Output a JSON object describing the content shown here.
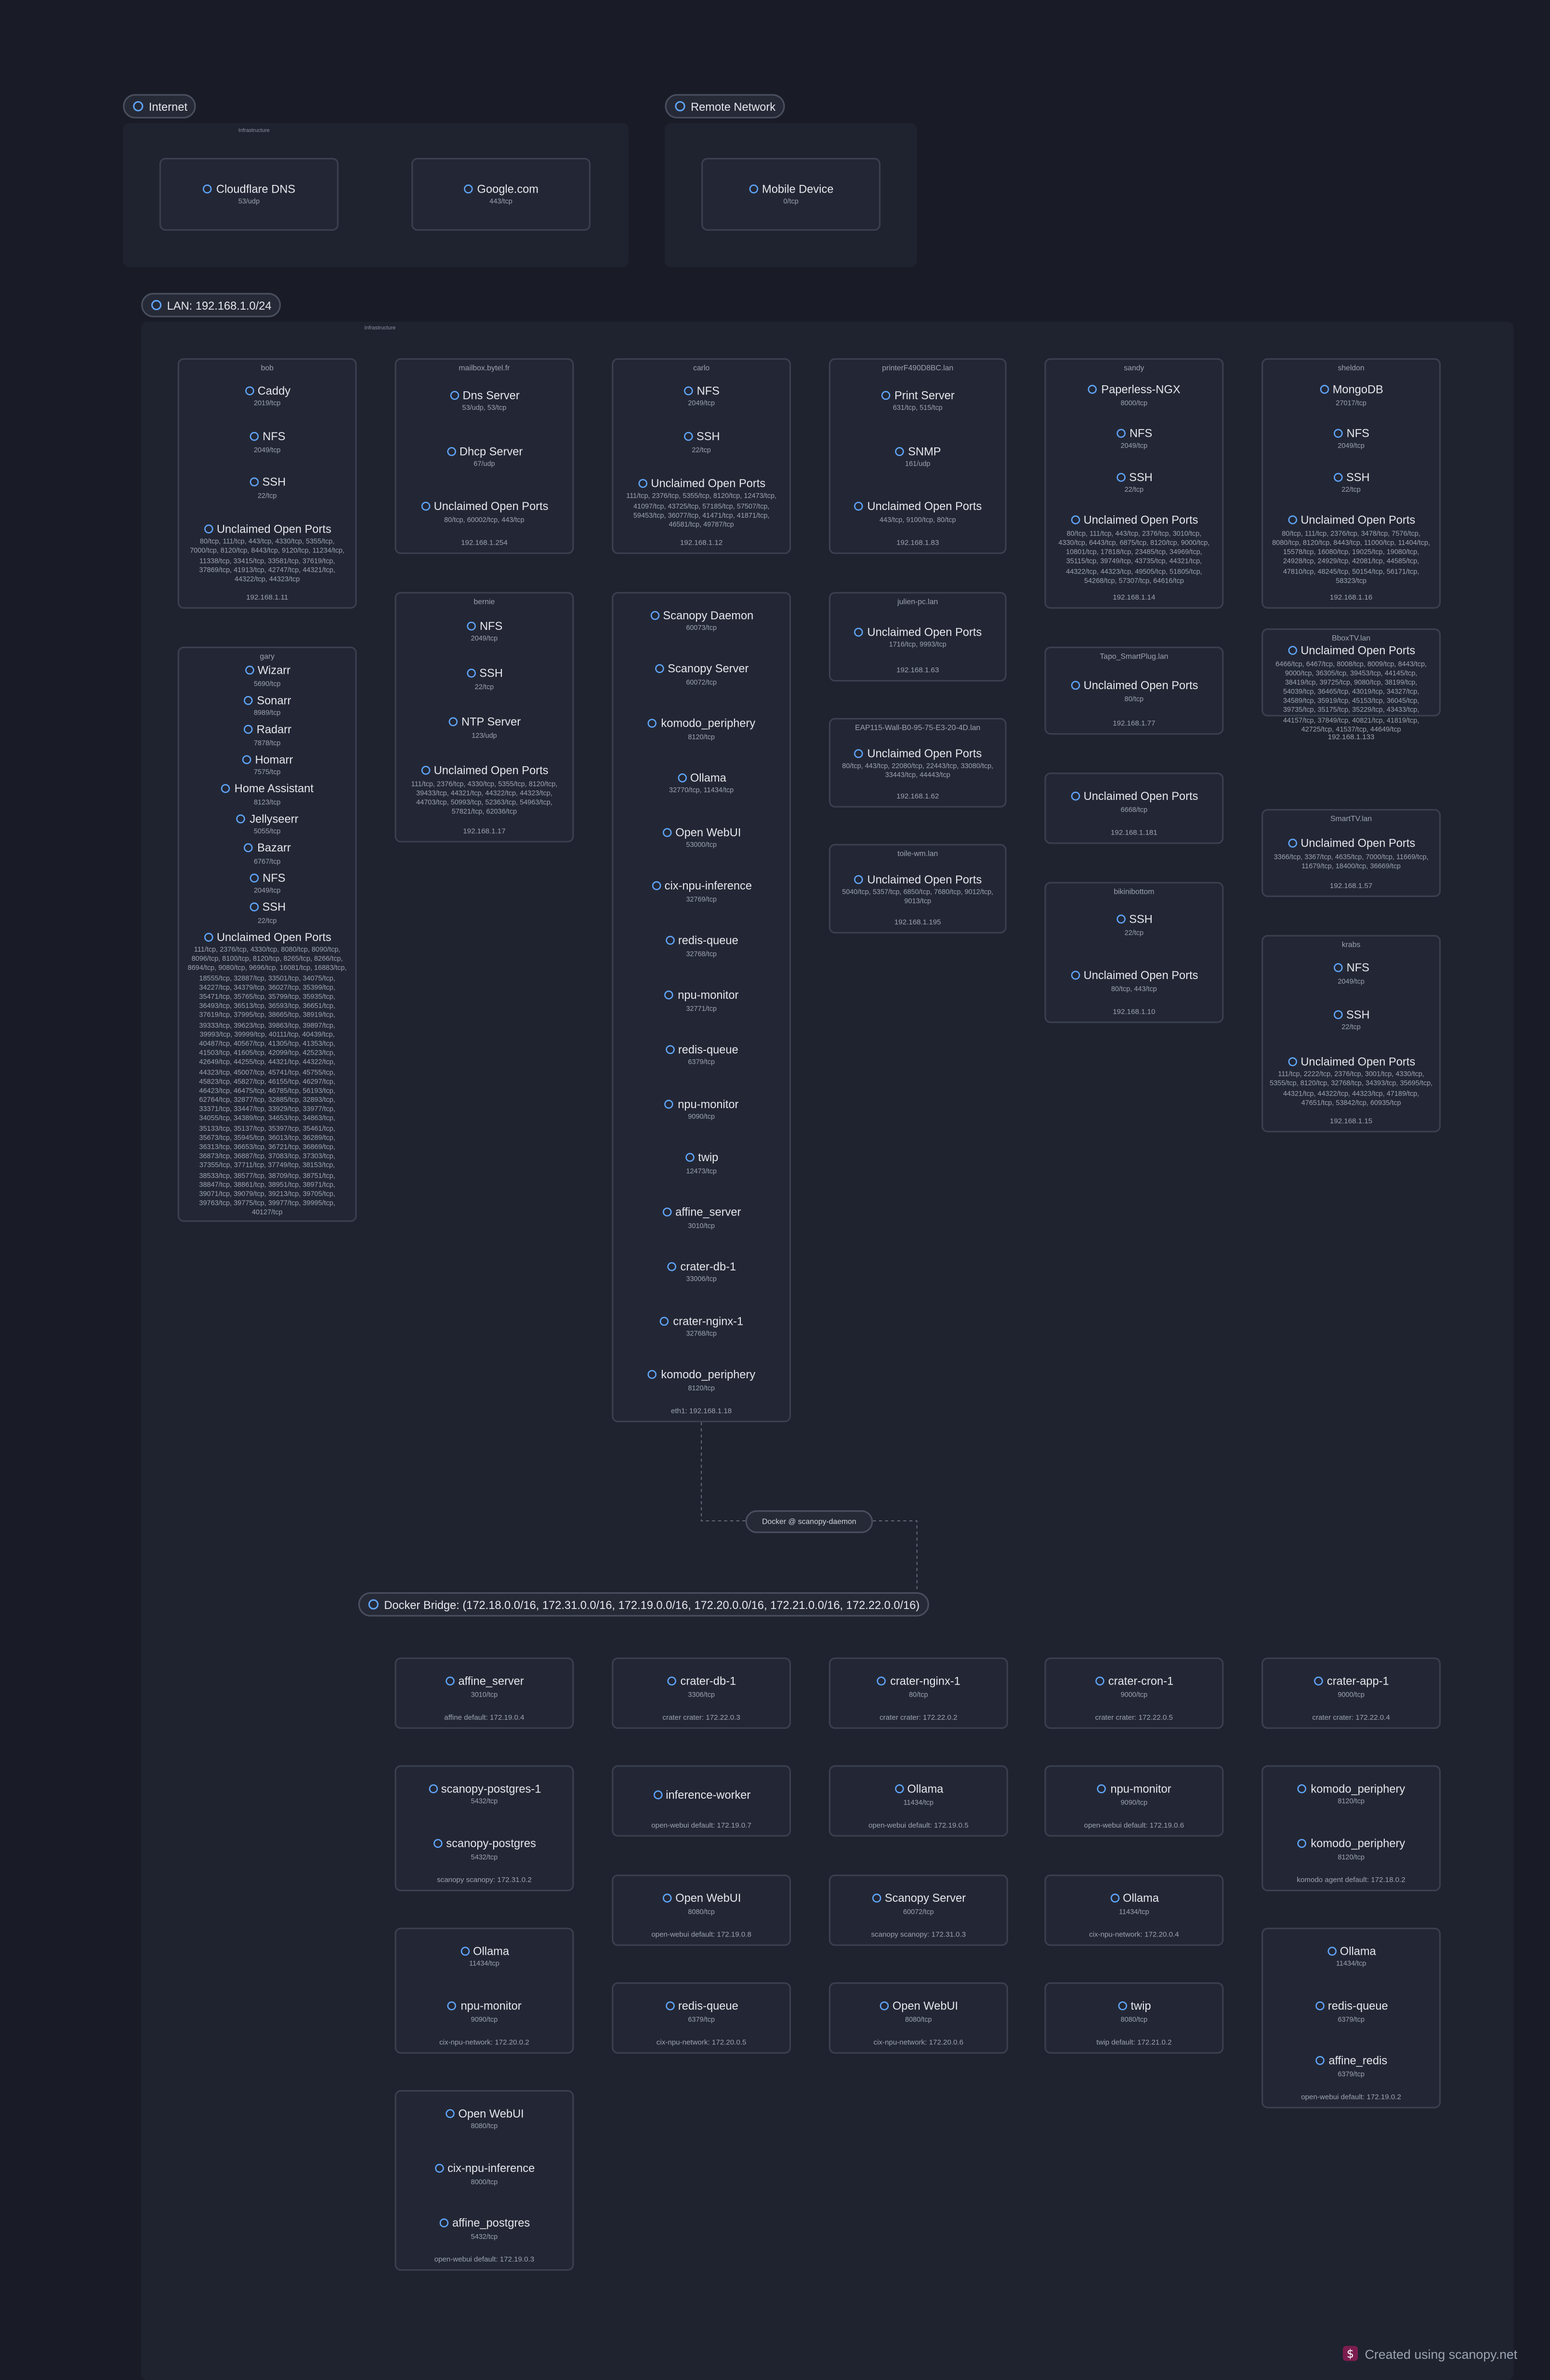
{
  "groups": [
    {
      "label": "Internet",
      "subtitle": "Infrastructure",
      "nodes": [
        {
          "services": [
            {
              "name": "Cloudflare DNS",
              "ports": "53/udp"
            }
          ]
        },
        {
          "services": [
            {
              "name": "Google.com",
              "ports": "443/tcp"
            }
          ]
        }
      ]
    },
    {
      "label": "Remote Network",
      "nodes": [
        {
          "services": [
            {
              "name": "Mobile Device",
              "ports": "0/tcp"
            }
          ]
        }
      ]
    },
    {
      "label": "LAN: 192.168.1.0/24",
      "subtitle": "Infrastructure",
      "nodes": [
        {
          "host": "bob",
          "services": [
            {
              "name": "Caddy",
              "ports": "2019/tcp"
            },
            {
              "name": "NFS",
              "ports": "2049/tcp"
            },
            {
              "name": "SSH",
              "ports": "22/tcp"
            },
            {
              "name": "Unclaimed Open Ports",
              "ports": "80/tcp, 111/tcp, 443/tcp, 4330/tcp, 5355/tcp, 7000/tcp, 8120/tcp, 8443/tcp, 9120/tcp, 11234/tcp, 11338/tcp, 33415/tcp, 33581/tcp, 37619/tcp, 37869/tcp, 41913/tcp, 42747/tcp, 44321/tcp, 44322/tcp, 44323/tcp"
            }
          ],
          "footer": "192.168.1.11"
        },
        {
          "host": "gary",
          "services": [
            {
              "name": "Wizarr",
              "ports": "5690/tcp"
            },
            {
              "name": "Sonarr",
              "ports": "8989/tcp"
            },
            {
              "name": "Radarr",
              "ports": "7878/tcp"
            },
            {
              "name": "Homarr",
              "ports": "7575/tcp"
            },
            {
              "name": "Home Assistant",
              "ports": "8123/tcp"
            },
            {
              "name": "Jellyseerr",
              "ports": "5055/tcp"
            },
            {
              "name": "Bazarr",
              "ports": "6767/tcp"
            },
            {
              "name": "NFS",
              "ports": "2049/tcp"
            },
            {
              "name": "SSH",
              "ports": "22/tcp"
            },
            {
              "name": "Unclaimed Open Ports",
              "ports": "111/tcp, 2376/tcp, 4330/tcp, 8080/tcp, 8090/tcp, 8096/tcp, 8100/tcp, 8120/tcp, 8265/tcp, 8266/tcp, 8694/tcp, 9080/tcp, 9696/tcp, 16081/tcp, 16883/tcp, 18555/tcp, 32887/tcp, 33501/tcp, 34075/tcp, 34227/tcp, 34379/tcp, 36027/tcp, 35399/tcp, 35471/tcp, 35765/tcp, 35799/tcp, 35935/tcp, 36493/tcp, 36513/tcp, 36593/tcp, 36651/tcp, 37619/tcp, 37995/tcp, 38665/tcp, 38919/tcp, 39333/tcp, 39623/tcp, 39863/tcp, 39897/tcp, 39993/tcp, 39999/tcp, 40111/tcp, 40439/tcp, 40487/tcp, 40567/tcp, 41305/tcp, 41353/tcp, 41503/tcp, 41605/tcp, 42099/tcp, 42523/tcp, 42649/tcp, 44255/tcp, 44321/tcp, 44322/tcp, 44323/tcp, 45007/tcp, 45741/tcp, 45755/tcp, 45823/tcp, 45827/tcp, 46155/tcp, 46297/tcp, 46423/tcp, 46475/tcp, 46785/tcp, 56193/tcp, 62764/tcp, 32877/tcp, 32885/tcp, 32893/tcp, 33371/tcp, 33447/tcp, 33929/tcp, 33977/tcp, 34055/tcp, 34389/tcp, 34653/tcp, 34863/tcp, 35133/tcp, 35137/tcp, 35397/tcp, 35461/tcp, 35673/tcp, 35945/tcp, 36013/tcp, 36289/tcp, 36313/tcp, 36653/tcp, 36721/tcp, 36869/tcp, 36873/tcp, 36887/tcp, 37083/tcp, 37303/tcp, 37355/tcp, 37711/tcp, 37749/tcp, 38153/tcp, 38533/tcp, 38577/tcp, 38709/tcp, 38751/tcp, 38847/tcp, 38861/tcp, 38951/tcp, 38971/tcp, 39071/tcp, 39079/tcp, 39213/tcp, 39705/tcp, 39763/tcp, 39775/tcp, 39977/tcp, 39995/tcp, 40127/tcp"
            }
          ]
        },
        {
          "host": "mailbox.bytel.fr",
          "services": [
            {
              "name": "Dns Server",
              "ports": "53/udp, 53/tcp"
            },
            {
              "name": "Dhcp Server",
              "ports": "67/udp"
            },
            {
              "name": "Unclaimed Open Ports",
              "ports": "80/tcp, 60002/tcp, 443/tcp"
            }
          ],
          "footer": "192.168.1.254"
        },
        {
          "host": "bernie",
          "services": [
            {
              "name": "NFS",
              "ports": "2049/tcp"
            },
            {
              "name": "SSH",
              "ports": "22/tcp"
            },
            {
              "name": "NTP Server",
              "ports": "123/udp"
            },
            {
              "name": "Unclaimed Open Ports",
              "ports": "111/tcp, 2376/tcp, 4330/tcp, 5355/tcp, 8120/tcp, 39433/tcp, 44321/tcp, 44322/tcp, 44323/tcp, 44703/tcp, 50993/tcp, 52363/tcp, 54963/tcp, 57821/tcp, 62036/tcp"
            }
          ],
          "footer": "192.168.1.17"
        },
        {
          "host": "carlo",
          "services": [
            {
              "name": "NFS",
              "ports": "2049/tcp"
            },
            {
              "name": "SSH",
              "ports": "22/tcp"
            },
            {
              "name": "Unclaimed Open Ports",
              "ports": "111/tcp, 2376/tcp, 5355/tcp, 8120/tcp, 12473/tcp, 41097/tcp, 43725/tcp, 57185/tcp, 57507/tcp, 59453/tcp, 36077/tcp, 41471/tcp, 41871/tcp, 46581/tcp, 49787/tcp"
            }
          ],
          "footer": "192.168.1.12"
        },
        {
          "services": [
            {
              "name": "Scanopy Daemon",
              "ports": "60073/tcp"
            },
            {
              "name": "Scanopy Server",
              "ports": "60072/tcp"
            },
            {
              "name": "komodo_periphery",
              "ports": "8120/tcp"
            },
            {
              "name": "Ollama",
              "ports": "32770/tcp, 11434/tcp"
            },
            {
              "name": "Open WebUI",
              "ports": "53000/tcp"
            },
            {
              "name": "cix-npu-inference",
              "ports": "32769/tcp"
            },
            {
              "name": "redis-queue",
              "ports": "32768/tcp"
            },
            {
              "name": "npu-monitor",
              "ports": "32771/tcp"
            },
            {
              "name": "redis-queue",
              "ports": "6379/tcp"
            },
            {
              "name": "npu-monitor",
              "ports": "9090/tcp"
            },
            {
              "name": "twip",
              "ports": "12473/tcp"
            },
            {
              "name": "affine_server",
              "ports": "3010/tcp"
            },
            {
              "name": "crater-db-1",
              "ports": "33006/tcp"
            },
            {
              "name": "crater-nginx-1",
              "ports": "32768/tcp"
            },
            {
              "name": "komodo_periphery",
              "ports": "8120/tcp"
            }
          ],
          "footer": "eth1: 192.168.1.18"
        },
        {
          "host": "printerF490D8BC.lan",
          "services": [
            {
              "name": "Print Server",
              "ports": "631/tcp, 515/tcp"
            },
            {
              "name": "SNMP",
              "ports": "161/udp"
            },
            {
              "name": "Unclaimed Open Ports",
              "ports": "443/tcp, 9100/tcp, 80/tcp"
            }
          ],
          "footer": "192.168.1.83"
        },
        {
          "host": "julien-pc.lan",
          "services": [
            {
              "name": "Unclaimed Open Ports",
              "ports": "1716/tcp, 9993/tcp"
            }
          ],
          "footer": "192.168.1.63"
        },
        {
          "host": "EAP115-Wall-B0-95-75-E3-20-4D.lan",
          "services": [
            {
              "name": "Unclaimed Open Ports",
              "ports": "80/tcp, 443/tcp, 22080/tcp, 22443/tcp, 33080/tcp, 33443/tcp, 44443/tcp"
            }
          ],
          "footer": "192.168.1.62"
        },
        {
          "host": "toile-wm.lan",
          "services": [
            {
              "name": "Unclaimed Open Ports",
              "ports": "5040/tcp, 5357/tcp, 6850/tcp, 7680/tcp, 9012/tcp, 9013/tcp"
            }
          ],
          "footer": "192.168.1.195"
        },
        {
          "host": "sandy",
          "services": [
            {
              "name": "Paperless-NGX",
              "ports": "8000/tcp"
            },
            {
              "name": "NFS",
              "ports": "2049/tcp"
            },
            {
              "name": "SSH",
              "ports": "22/tcp"
            },
            {
              "name": "Unclaimed Open Ports",
              "ports": "80/tcp, 111/tcp, 443/tcp, 2376/tcp, 3010/tcp, 4330/tcp, 6443/tcp, 6875/tcp, 8120/tcp, 9000/tcp, 10801/tcp, 17818/tcp, 23485/tcp, 34969/tcp, 35115/tcp, 39749/tcp, 43735/tcp, 44321/tcp, 44322/tcp, 44323/tcp, 49505/tcp, 51805/tcp, 54268/tcp, 57307/tcp, 64616/tcp"
            }
          ],
          "footer": "192.168.1.14"
        },
        {
          "host": "Tapo_SmartPlug.lan",
          "services": [
            {
              "name": "Unclaimed Open Ports",
              "ports": "80/tcp"
            }
          ],
          "footer": "192.168.1.77"
        },
        {
          "services": [
            {
              "name": "Unclaimed Open Ports",
              "ports": "6668/tcp"
            }
          ],
          "footer": "192.168.1.181"
        },
        {
          "host": "bikinibottom",
          "services": [
            {
              "name": "SSH",
              "ports": "22/tcp"
            },
            {
              "name": "Unclaimed Open Ports",
              "ports": "80/tcp, 443/tcp"
            }
          ],
          "footer": "192.168.1.10"
        },
        {
          "host": "sheldon",
          "services": [
            {
              "name": "MongoDB",
              "ports": "27017/tcp"
            },
            {
              "name": "NFS",
              "ports": "2049/tcp"
            },
            {
              "name": "SSH",
              "ports": "22/tcp"
            },
            {
              "name": "Unclaimed Open Ports",
              "ports": "80/tcp, 111/tcp, 2376/tcp, 3478/tcp, 7576/tcp, 8080/tcp, 8120/tcp, 8443/tcp, 11000/tcp, 11404/tcp, 15578/tcp, 16080/tcp, 19025/tcp, 19080/tcp, 24928/tcp, 24929/tcp, 42081/tcp, 44585/tcp, 47810/tcp, 48245/tcp, 50154/tcp, 56171/tcp, 58323/tcp"
            }
          ],
          "footer": "192.168.1.16"
        },
        {
          "host": "BboxTV.lan",
          "services": [
            {
              "name": "Unclaimed Open Ports",
              "ports": "6466/tcp, 6467/tcp, 8008/tcp, 8009/tcp, 8443/tcp, 9000/tcp, 36305/tcp, 39453/tcp, 44145/tcp, 38419/tcp, 39725/tcp, 9080/tcp, 38199/tcp, 54039/tcp, 36465/tcp, 43019/tcp, 34327/tcp, 34589/tcp, 35919/tcp, 45153/tcp, 36045/tcp, 39735/tcp, 35175/tcp, 35229/tcp, 43433/tcp, 44157/tcp, 37849/tcp, 40821/tcp, 41819/tcp, 42725/tcp, 41537/tcp, 44649/tcp"
            }
          ],
          "footer": "192.168.1.133"
        },
        {
          "host": "SmartTV.lan",
          "services": [
            {
              "name": "Unclaimed Open Ports",
              "ports": "3366/tcp, 3367/tcp, 4635/tcp, 7000/tcp, 11669/tcp, 11679/tcp, 18400/tcp, 36669/tcp"
            }
          ],
          "footer": "192.168.1.57"
        },
        {
          "host": "krabs",
          "services": [
            {
              "name": "NFS",
              "ports": "2049/tcp"
            },
            {
              "name": "SSH",
              "ports": "22/tcp"
            },
            {
              "name": "Unclaimed Open Ports",
              "ports": "111/tcp, 2222/tcp, 2376/tcp, 3001/tcp, 4330/tcp, 5355/tcp, 8120/tcp, 32768/tcp, 34393/tcp, 35695/tcp, 44321/tcp, 44322/tcp, 44323/tcp, 47189/tcp, 47651/tcp, 53842/tcp, 60935/tcp"
            }
          ],
          "footer": "192.168.1.15"
        }
      ]
    },
    {
      "label": "Docker Bridge: (172.18.0.0/16, 172.31.0.0/16, 172.19.0.0/16, 172.20.0.0/16, 172.21.0.0/16, 172.22.0.0/16)",
      "nodes": [
        {
          "services": [
            {
              "name": "affine_server",
              "ports": "3010/tcp"
            }
          ],
          "footer": "affine  default: 172.19.0.4"
        },
        {
          "services": [
            {
              "name": "crater-db-1",
              "ports": "3306/tcp"
            }
          ],
          "footer": "crater  crater: 172.22.0.3"
        },
        {
          "services": [
            {
              "name": "crater-nginx-1",
              "ports": "80/tcp"
            }
          ],
          "footer": "crater  crater: 172.22.0.2"
        },
        {
          "services": [
            {
              "name": "crater-cron-1",
              "ports": "9000/tcp"
            }
          ],
          "footer": "crater  crater: 172.22.0.5"
        },
        {
          "services": [
            {
              "name": "crater-app-1",
              "ports": "9000/tcp"
            }
          ],
          "footer": "crater  crater: 172.22.0.4"
        },
        {
          "services": [
            {
              "name": "scanopy-postgres-1",
              "ports": "5432/tcp"
            },
            {
              "name": "scanopy-postgres",
              "ports": "5432/tcp"
            }
          ],
          "footer": "scanopy  scanopy: 172.31.0.2"
        },
        {
          "services": [
            {
              "name": "inference-worker"
            }
          ],
          "footer": "open-webui  default: 172.19.0.7"
        },
        {
          "services": [
            {
              "name": "Ollama",
              "ports": "11434/tcp"
            }
          ],
          "footer": "open-webui  default: 172.19.0.5"
        },
        {
          "services": [
            {
              "name": "npu-monitor",
              "ports": "9090/tcp"
            }
          ],
          "footer": "open-webui  default: 172.19.0.6"
        },
        {
          "services": [
            {
              "name": "komodo_periphery",
              "ports": "8120/tcp"
            },
            {
              "name": "komodo_periphery",
              "ports": "8120/tcp"
            }
          ],
          "footer": "komodo  agent  default: 172.18.0.2"
        },
        {
          "services": [
            {
              "name": "Ollama",
              "ports": "11434/tcp"
            },
            {
              "name": "npu-monitor",
              "ports": "9090/tcp"
            }
          ],
          "footer": "cix-npu-network: 172.20.0.2"
        },
        {
          "services": [
            {
              "name": "Open WebUI",
              "ports": "8080/tcp"
            }
          ],
          "footer": "open-webui  default: 172.19.0.8"
        },
        {
          "services": [
            {
              "name": "Scanopy Server",
              "ports": "60072/tcp"
            }
          ],
          "footer": "scanopy  scanopy: 172.31.0.3"
        },
        {
          "services": [
            {
              "name": "Ollama",
              "ports": "11434/tcp"
            }
          ],
          "footer": "cix-npu-network: 172.20.0.4"
        },
        {
          "services": [
            {
              "name": "Ollama",
              "ports": "11434/tcp"
            },
            {
              "name": "redis-queue",
              "ports": "6379/tcp"
            },
            {
              "name": "affine_redis",
              "ports": "6379/tcp"
            }
          ],
          "footer": "open-webui  default: 172.19.0.2"
        },
        {
          "services": [
            {
              "name": "redis-queue",
              "ports": "6379/tcp"
            }
          ],
          "footer": "cix-npu-network: 172.20.0.5"
        },
        {
          "services": [
            {
              "name": "Open WebUI",
              "ports": "8080/tcp"
            }
          ],
          "footer": "cix-npu-network: 172.20.0.6"
        },
        {
          "services": [
            {
              "name": "twip",
              "ports": "8080/tcp"
            }
          ],
          "footer": "twip  default: 172.21.0.2"
        },
        {
          "services": [
            {
              "name": "Open WebUI",
              "ports": "8080/tcp"
            },
            {
              "name": "cix-npu-inference",
              "ports": "8000/tcp"
            },
            {
              "name": "affine_postgres",
              "ports": "5432/tcp"
            }
          ],
          "footer": "open-webui  default: 172.19.0.3"
        }
      ]
    }
  ],
  "docker_host_label": "Docker @ scanopy-daemon",
  "credit": "Created using scanopy.net"
}
